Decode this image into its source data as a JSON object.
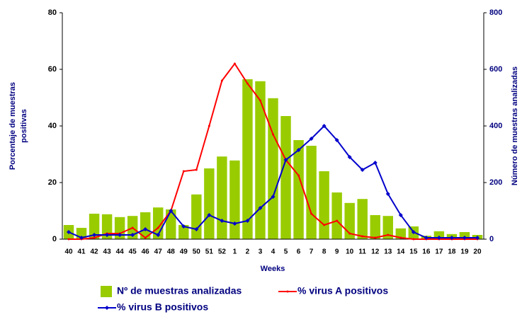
{
  "chart_data": {
    "type": "bar-line",
    "xlabel": "Weeks",
    "ylabel": [
      "Porcentaje de muestras",
      "positivas"
    ],
    "y2label": "Número de muestras analizadas",
    "categories": [
      "40",
      "41",
      "42",
      "43",
      "44",
      "45",
      "46",
      "47",
      "48",
      "49",
      "50",
      "51",
      "52",
      "1",
      "2",
      "3",
      "4",
      "5",
      "6",
      "7",
      "8",
      "9",
      "10",
      "11",
      "12",
      "13",
      "14",
      "15",
      "16",
      "17",
      "18",
      "19",
      "20"
    ],
    "ylim": [
      0,
      80
    ],
    "yticks": [
      0,
      20,
      40,
      60,
      80
    ],
    "y2lim": [
      0,
      800
    ],
    "y2ticks": [
      0,
      200,
      400,
      600,
      800
    ],
    "series": [
      {
        "name": "Nº de muestras analizadas",
        "kind": "bar",
        "axis": "y2",
        "color": "#99cc00",
        "values": [
          50,
          40,
          90,
          88,
          78,
          82,
          95,
          112,
          105,
          50,
          158,
          250,
          292,
          278,
          565,
          558,
          498,
          435,
          350,
          330,
          240,
          165,
          128,
          142,
          85,
          82,
          38,
          45,
          12,
          28,
          18,
          25,
          15
        ]
      },
      {
        "name": "% virus A positivos",
        "kind": "line",
        "axis": "y",
        "color": "#ff0000",
        "values": [
          0,
          0,
          0.5,
          2,
          2,
          4,
          0.5,
          4,
          10,
          24,
          24.5,
          40,
          56,
          62,
          55,
          49,
          37,
          28,
          22.5,
          9,
          5,
          6.5,
          2,
          1,
          0.5,
          1.5,
          0.5,
          0,
          0,
          0,
          0,
          0,
          0
        ]
      },
      {
        "name": "% virus B positivos",
        "kind": "line",
        "axis": "y",
        "color": "#0000cc",
        "values": [
          2.5,
          0.5,
          1.5,
          1.5,
          1.5,
          1.5,
          3.5,
          1.5,
          10,
          4.5,
          3.5,
          8.5,
          6.5,
          5.5,
          6.5,
          11,
          15,
          28,
          31.5,
          35.5,
          40,
          35,
          29,
          24.5,
          27,
          16,
          8.5,
          2.5,
          0.5,
          0.5,
          0.5,
          0.5,
          0.5
        ]
      }
    ]
  }
}
